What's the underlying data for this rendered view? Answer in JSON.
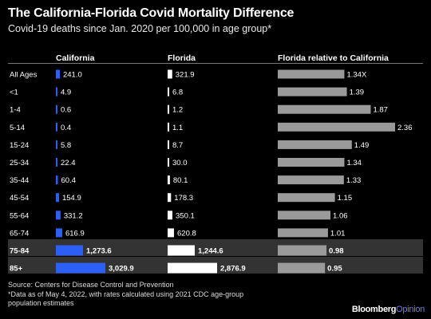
{
  "title": "The California-Florida Covid Mortality Difference",
  "subtitle": "Covid-19 deaths since Jan. 2020 per 100,000 in age group*",
  "headers": {
    "california": "California",
    "florida": "Florida",
    "ratio": "Florida relative to California"
  },
  "source": "Source: Centers for Disease Control and Prevention",
  "note_line1": "*Data as of May 4, 2022, with rates calculated using 2021 CDC age-group",
  "note_line2": "population estimates",
  "brand": {
    "name": "Bloomberg",
    "suffix": "Opinion"
  },
  "colors": {
    "california": "#2b5ff5",
    "florida": "#ffffff",
    "ratio": "#9a9a9a",
    "highlight": "#333333"
  },
  "chart_data": {
    "type": "table",
    "categories": [
      "All Ages",
      "<1",
      "1-4",
      "5-14",
      "15-24",
      "25-34",
      "35-44",
      "45-54",
      "55-64",
      "65-74",
      "75-84",
      "85+"
    ],
    "series": [
      {
        "name": "California",
        "values": [
          241.0,
          4.9,
          0.6,
          0.4,
          5.8,
          22.4,
          60.4,
          154.9,
          331.2,
          616.9,
          1273.6,
          3029.9
        ],
        "labels": [
          "241.0",
          "4.9",
          "0.6",
          "0.4",
          "5.8",
          "22.4",
          "60.4",
          "154.9",
          "331.2",
          "616.9",
          "1,273.6",
          "3,029.9"
        ]
      },
      {
        "name": "Florida",
        "values": [
          321.9,
          6.8,
          1.2,
          1.1,
          8.7,
          30.0,
          80.1,
          178.3,
          350.1,
          620.8,
          1244.6,
          2876.9
        ],
        "labels": [
          "321.9",
          "6.8",
          "1.2",
          "1.1",
          "8.7",
          "30.0",
          "80.1",
          "178.3",
          "350.1",
          "620.8",
          "1,244.6",
          "2,876.9"
        ]
      },
      {
        "name": "Florida relative to California",
        "values": [
          1.34,
          1.39,
          1.87,
          2.36,
          1.49,
          1.34,
          1.33,
          1.15,
          1.06,
          1.01,
          0.98,
          0.95
        ],
        "labels": [
          "1.34X",
          "1.39",
          "1.87",
          "2.36",
          "1.49",
          "1.34",
          "1.33",
          "1.15",
          "1.06",
          "1.01",
          "0.98",
          "0.95"
        ]
      }
    ],
    "highlight_rows": [
      "75-84",
      "85+"
    ]
  }
}
